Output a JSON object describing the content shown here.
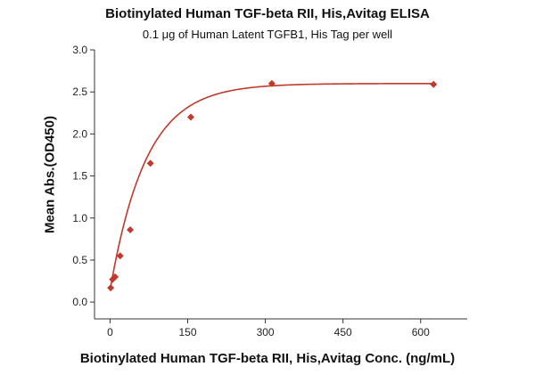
{
  "chart_data": {
    "type": "scatter",
    "title": "Biotinylated Human TGF-beta RII, His,Avitag ELISA",
    "subtitle": "0.1 μg of Human Latent TGFB1, His Tag per well",
    "xlabel": "Biotinylated Human TGF-beta RII, His,Avitag Conc. (ng/mL)",
    "ylabel": "Mean Abs.(OD450)",
    "xlim": [
      -30,
      690
    ],
    "ylim": [
      -0.2,
      3.0
    ],
    "xticks": [
      0,
      150,
      300,
      450,
      600
    ],
    "yticks": [
      0.0,
      0.5,
      1.0,
      1.5,
      2.0,
      2.5,
      3.0
    ],
    "ytick_labels": [
      "0.0",
      "0.5",
      "1.0",
      "1.5",
      "2.0",
      "2.5",
      "3.0"
    ],
    "grid": false,
    "marker_color": "#c0392b",
    "curve_color": "#c0392b",
    "series": [
      {
        "points": [
          {
            "x": 1.2,
            "y": 0.17
          },
          {
            "x": 4.9,
            "y": 0.27
          },
          {
            "x": 9.8,
            "y": 0.3
          },
          {
            "x": 19.5,
            "y": 0.55
          },
          {
            "x": 39,
            "y": 0.86
          },
          {
            "x": 78,
            "y": 1.65
          },
          {
            "x": 156,
            "y": 2.2
          },
          {
            "x": 312.5,
            "y": 2.6
          },
          {
            "x": 625,
            "y": 2.59
          }
        ],
        "fit": {
          "model": "exponential-rise",
          "ymin": 0.14,
          "ymax": 2.6,
          "k": 0.0144
        }
      }
    ]
  }
}
